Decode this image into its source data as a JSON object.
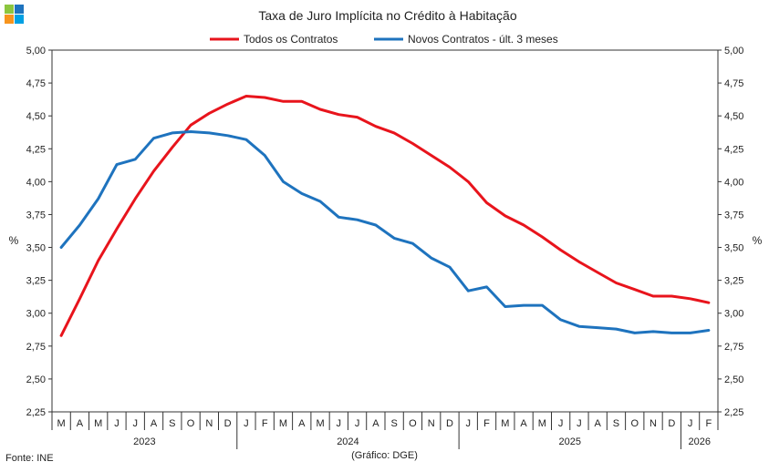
{
  "chart_data": {
    "type": "line",
    "title": "Taxa de Juro Implícita  no Crédito à Habitação",
    "ylabel_left": "%",
    "ylabel_right": "%",
    "ylim": [
      2.25,
      5.0
    ],
    "yticks": [
      "2,25",
      "2,50",
      "2,75",
      "3,00",
      "3,25",
      "3,50",
      "3,75",
      "4,00",
      "4,25",
      "4,50",
      "4,75",
      "5,00"
    ],
    "ytick_values": [
      2.25,
      2.5,
      2.75,
      3.0,
      3.25,
      3.5,
      3.75,
      4.0,
      4.25,
      4.5,
      4.75,
      5.0
    ],
    "months": [
      "M",
      "A",
      "M",
      "J",
      "J",
      "A",
      "S",
      "O",
      "N",
      "D",
      "J",
      "F",
      "M",
      "A",
      "M",
      "J",
      "J",
      "A",
      "S",
      "O",
      "N",
      "D",
      "J",
      "F",
      "M",
      "A",
      "M",
      "J",
      "J",
      "A",
      "S",
      "O",
      "N",
      "D",
      "J",
      "F"
    ],
    "years": [
      {
        "label": "2023",
        "start": 0,
        "count": 10
      },
      {
        "label": "2024",
        "start": 10,
        "count": 12
      },
      {
        "label": "2025",
        "start": 22,
        "count": 12
      },
      {
        "label": "2026",
        "start": 34,
        "count": 2
      }
    ],
    "legend": "top",
    "series": [
      {
        "name": "Todos os Contratos",
        "color": "#e8141c",
        "values": [
          2.83,
          3.11,
          3.4,
          3.64,
          3.87,
          4.08,
          4.26,
          4.43,
          4.52,
          4.59,
          4.65,
          4.64,
          4.61,
          4.61,
          4.55,
          4.51,
          4.49,
          4.42,
          4.37,
          4.29,
          4.2,
          4.11,
          4.0,
          3.84,
          3.74,
          3.67,
          3.58,
          3.48,
          3.39,
          3.31,
          3.23,
          3.18,
          3.13,
          3.13,
          3.11,
          3.08
        ]
      },
      {
        "name": "Novos Contratos - últ. 3 meses",
        "color": "#1e73be",
        "values": [
          3.5,
          3.67,
          3.87,
          4.13,
          4.17,
          4.33,
          4.37,
          4.38,
          4.37,
          4.35,
          4.32,
          4.2,
          4.0,
          3.91,
          3.85,
          3.73,
          3.71,
          3.67,
          3.57,
          3.53,
          3.42,
          3.35,
          3.17,
          3.2,
          3.05,
          3.06,
          3.06,
          2.95,
          2.9,
          2.89,
          2.88,
          2.85,
          2.86,
          2.85,
          2.85,
          2.87
        ]
      }
    ]
  },
  "footer": {
    "source": "Fonte: INE",
    "credit": "(Gráfico: DGE)"
  },
  "logo_colors": [
    "#8cc63f",
    "#1e73be",
    "#f7941d",
    "#00a0e3"
  ]
}
